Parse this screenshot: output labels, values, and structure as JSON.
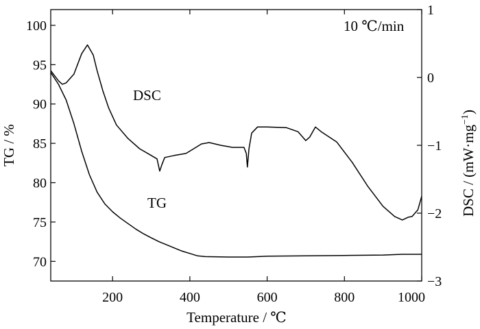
{
  "chart_data": {
    "type": "line",
    "xlabel": "Temperature / ℃",
    "ylabel_left": "TG / %",
    "ylabel_right_main": "DSC / (mW·mg",
    "ylabel_right_sup": "−1",
    "ylabel_right_close": ")",
    "annotation_rate": "10 ℃/min",
    "xlim": [
      40,
      1000
    ],
    "ylim_left": [
      67.5,
      102
    ],
    "ylim_right": [
      -3,
      1
    ],
    "x_ticks": [
      200,
      400,
      600,
      800,
      1000
    ],
    "x_tick_labels": [
      "200",
      "400",
      "600",
      "800",
      "1000"
    ],
    "y_left_ticks": [
      70,
      75,
      80,
      85,
      90,
      95,
      100
    ],
    "y_left_tick_labels": [
      "70",
      "75",
      "80",
      "85",
      "90",
      "95",
      "100"
    ],
    "y_right_ticks": [
      -3,
      -2,
      -1,
      0,
      1
    ],
    "y_right_tick_labels": [
      "−3",
      "−2",
      "−1",
      "0",
      "1"
    ],
    "series": [
      {
        "name": "TG",
        "axis": "left",
        "points": [
          [
            40,
            94
          ],
          [
            60,
            92.5
          ],
          [
            80,
            90.5
          ],
          [
            100,
            87.5
          ],
          [
            120,
            84
          ],
          [
            140,
            81
          ],
          [
            160,
            78.8
          ],
          [
            180,
            77.3
          ],
          [
            200,
            76.3
          ],
          [
            220,
            75.5
          ],
          [
            240,
            74.8
          ],
          [
            260,
            74.1
          ],
          [
            280,
            73.5
          ],
          [
            300,
            73
          ],
          [
            320,
            72.5
          ],
          [
            340,
            72.1
          ],
          [
            360,
            71.7
          ],
          [
            380,
            71.3
          ],
          [
            400,
            71
          ],
          [
            420,
            70.7
          ],
          [
            440,
            70.6
          ],
          [
            500,
            70.55
          ],
          [
            550,
            70.55
          ],
          [
            600,
            70.65
          ],
          [
            700,
            70.7
          ],
          [
            800,
            70.75
          ],
          [
            900,
            70.8
          ],
          [
            950,
            70.9
          ],
          [
            1000,
            70.9
          ]
        ]
      },
      {
        "name": "DSC",
        "axis": "right",
        "points": [
          [
            40,
            0.1
          ],
          [
            60,
            -0.05
          ],
          [
            70,
            -0.1
          ],
          [
            80,
            -0.08
          ],
          [
            100,
            0.05
          ],
          [
            120,
            0.35
          ],
          [
            135,
            0.48
          ],
          [
            150,
            0.33
          ],
          [
            160,
            0.1
          ],
          [
            175,
            -0.2
          ],
          [
            190,
            -0.45
          ],
          [
            210,
            -0.7
          ],
          [
            240,
            -0.9
          ],
          [
            270,
            -1.05
          ],
          [
            300,
            -1.15
          ],
          [
            315,
            -1.2
          ],
          [
            322,
            -1.38
          ],
          [
            328,
            -1.28
          ],
          [
            335,
            -1.18
          ],
          [
            360,
            -1.15
          ],
          [
            390,
            -1.12
          ],
          [
            410,
            -1.05
          ],
          [
            430,
            -0.98
          ],
          [
            450,
            -0.96
          ],
          [
            480,
            -1
          ],
          [
            510,
            -1.03
          ],
          [
            540,
            -1.03
          ],
          [
            546,
            -1.12
          ],
          [
            549,
            -1.32
          ],
          [
            553,
            -1.05
          ],
          [
            560,
            -0.82
          ],
          [
            575,
            -0.73
          ],
          [
            600,
            -0.73
          ],
          [
            650,
            -0.74
          ],
          [
            680,
            -0.8
          ],
          [
            700,
            -0.93
          ],
          [
            710,
            -0.88
          ],
          [
            725,
            -0.73
          ],
          [
            740,
            -0.8
          ],
          [
            780,
            -0.95
          ],
          [
            820,
            -1.25
          ],
          [
            860,
            -1.6
          ],
          [
            900,
            -1.9
          ],
          [
            930,
            -2.05
          ],
          [
            950,
            -2.1
          ],
          [
            965,
            -2.06
          ],
          [
            975,
            -2.05
          ],
          [
            990,
            -1.95
          ],
          [
            1000,
            -1.75
          ]
        ]
      }
    ]
  }
}
